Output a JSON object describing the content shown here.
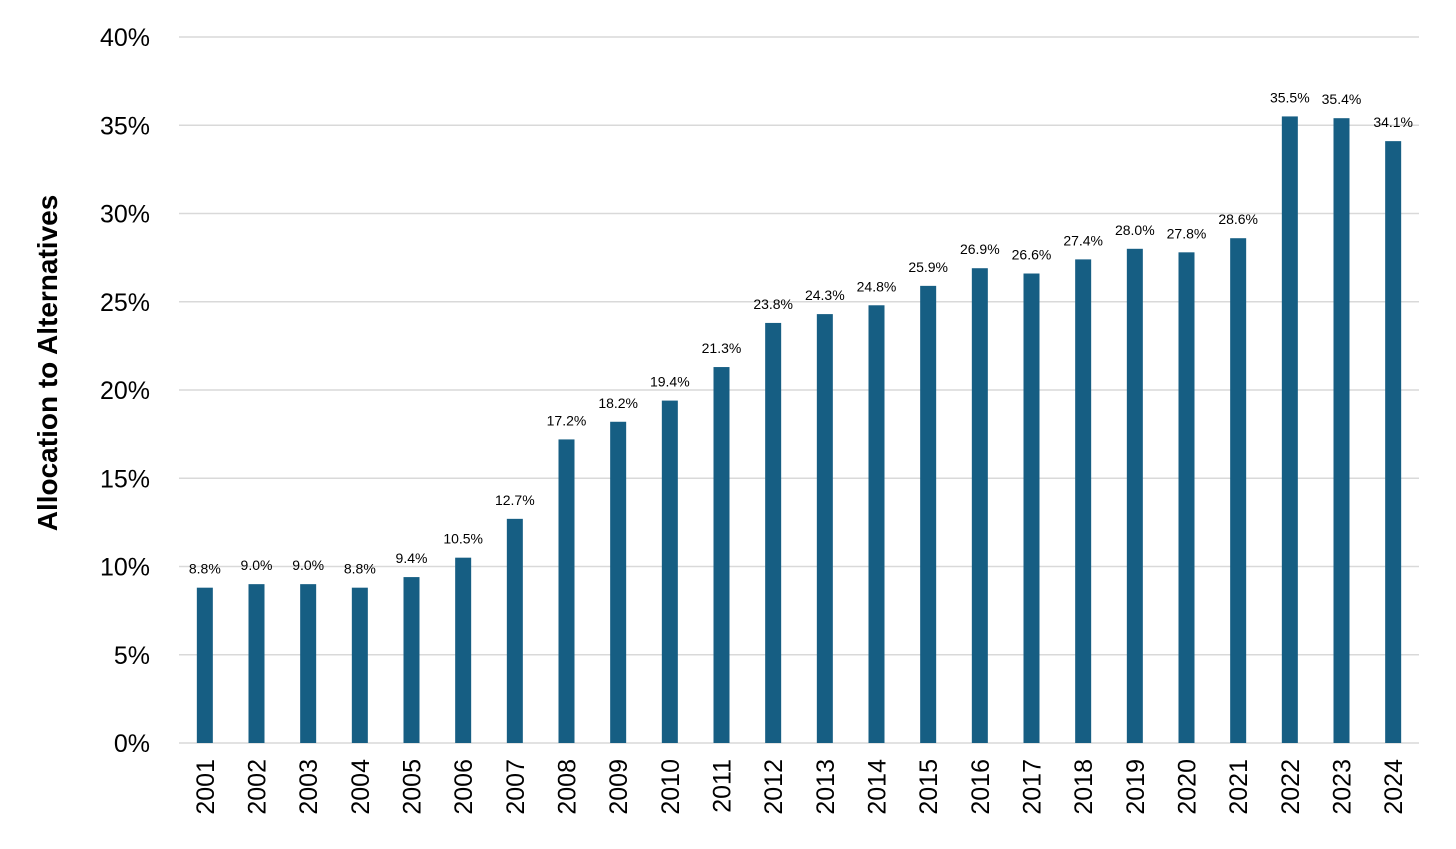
{
  "chart_data": {
    "type": "bar",
    "title": "",
    "xlabel": "",
    "ylabel": "Allocation to Alternatives",
    "ylim": [
      0,
      40
    ],
    "y_ticks": [
      0,
      5,
      10,
      15,
      20,
      25,
      30,
      35,
      40
    ],
    "y_tick_labels": [
      "0%",
      "5%",
      "10%",
      "15%",
      "20%",
      "25%",
      "30%",
      "35%",
      "40%"
    ],
    "grid": true,
    "legend": "none",
    "bar_color": "#165e83",
    "categories": [
      "2001",
      "2002",
      "2003",
      "2004",
      "2005",
      "2006",
      "2007",
      "2008",
      "2009",
      "2010",
      "2011",
      "2012",
      "2013",
      "2014",
      "2015",
      "2016",
      "2017",
      "2018",
      "2019",
      "2020",
      "2021",
      "2022",
      "2023",
      "2024"
    ],
    "values": [
      8.8,
      9.0,
      9.0,
      8.8,
      9.4,
      10.5,
      12.7,
      17.2,
      18.2,
      19.4,
      21.3,
      23.8,
      24.3,
      24.8,
      25.9,
      26.9,
      26.6,
      27.4,
      28.0,
      27.8,
      28.6,
      35.5,
      35.4,
      34.1
    ],
    "data_labels": [
      "8.8%",
      "9.0%",
      "9.0%",
      "8.8%",
      "9.4%",
      "10.5%",
      "12.7%",
      "17.2%",
      "18.2%",
      "19.4%",
      "21.3%",
      "23.8%",
      "24.3%",
      "24.8%",
      "25.9%",
      "26.9%",
      "26.6%",
      "27.4%",
      "28.0%",
      "27.8%",
      "28.6%",
      "35.5%",
      "35.4%",
      "34.1%"
    ]
  }
}
